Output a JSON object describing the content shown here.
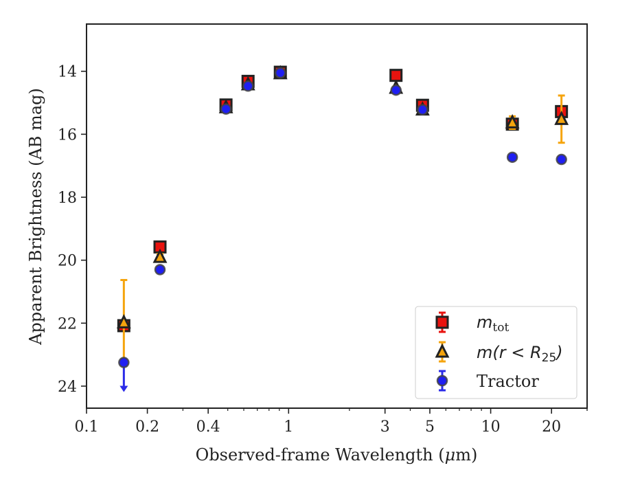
{
  "chart_data": {
    "type": "scatter",
    "xlabel_text": "Observed-frame Wavelength (",
    "xlabel_unit": "μ",
    "xlabel_end": "m)",
    "ylabel": "Apparent Brightness (AB mag)",
    "x_scale": "log",
    "xlim": [
      0.1,
      30
    ],
    "ylim": [
      24.7,
      12.5
    ],
    "y_inverted": true,
    "x_ticks": [
      0.1,
      0.2,
      0.4,
      1,
      3,
      5,
      10,
      20
    ],
    "x_tick_labels": [
      "0.1",
      "0.2",
      "0.4",
      "1",
      "3",
      "5",
      "10",
      "20"
    ],
    "y_ticks": [
      14,
      16,
      18,
      20,
      22,
      24
    ],
    "y_tick_labels": [
      "14",
      "16",
      "18",
      "20",
      "22",
      "24"
    ],
    "grid": false,
    "legend_position": "bottom-right",
    "series": [
      {
        "key": "mtot",
        "legend_main": "m",
        "legend_sub": "tot",
        "marker": "square",
        "color": "#e8130f",
        "err_color": "#e8130f",
        "points": [
          {
            "x": 0.153,
            "y": 22.08,
            "err": 0.12
          },
          {
            "x": 0.231,
            "y": 19.58,
            "err": 0.08
          },
          {
            "x": 0.49,
            "y": 15.07,
            "err": 0.05
          },
          {
            "x": 0.63,
            "y": 14.32,
            "err": 0.05
          },
          {
            "x": 0.91,
            "y": 14.03,
            "err": 0.05
          },
          {
            "x": 3.4,
            "y": 14.13,
            "err": 0.05
          },
          {
            "x": 4.6,
            "y": 15.08,
            "err": 0.05
          },
          {
            "x": 12.8,
            "y": 15.68,
            "err": 0.08
          },
          {
            "x": 22.4,
            "y": 15.28,
            "err": 0.1
          }
        ]
      },
      {
        "key": "mr25",
        "legend_main": "m(r < R",
        "legend_sub": "25",
        "legend_end": ")",
        "marker": "triangle",
        "color": "#f5a40d",
        "err_color": "#f5a40d",
        "points": [
          {
            "x": 0.153,
            "y": 21.98,
            "err": 1.35
          },
          {
            "x": 0.231,
            "y": 19.9,
            "err": 0.1
          },
          {
            "x": 0.49,
            "y": 15.15,
            "err": 0.05
          },
          {
            "x": 0.63,
            "y": 14.42,
            "err": 0.05
          },
          {
            "x": 0.91,
            "y": 14.07,
            "err": 0.05
          },
          {
            "x": 3.4,
            "y": 14.53,
            "err": 0.05
          },
          {
            "x": 4.6,
            "y": 15.22,
            "err": 0.05
          },
          {
            "x": 12.8,
            "y": 15.63,
            "err": 0.2
          },
          {
            "x": 22.4,
            "y": 15.52,
            "err": 0.75
          }
        ]
      },
      {
        "key": "tractor",
        "legend_main": "Tractor",
        "marker": "circle",
        "color": "#1f1ff2",
        "err_color": "#2b2be8",
        "points": [
          {
            "x": 0.153,
            "y": 23.25,
            "err": 0,
            "upper_limit": true
          },
          {
            "x": 0.231,
            "y": 20.3,
            "err": 0.05
          },
          {
            "x": 0.49,
            "y": 15.2,
            "err": 0.05
          },
          {
            "x": 0.63,
            "y": 14.47,
            "err": 0.05
          },
          {
            "x": 0.91,
            "y": 14.05,
            "err": 0.05
          },
          {
            "x": 3.4,
            "y": 14.6,
            "err": 0.05
          },
          {
            "x": 4.6,
            "y": 15.22,
            "err": 0.05
          },
          {
            "x": 12.8,
            "y": 16.73,
            "err": 0.05
          },
          {
            "x": 22.4,
            "y": 16.8,
            "err": 0.05
          }
        ]
      }
    ]
  }
}
